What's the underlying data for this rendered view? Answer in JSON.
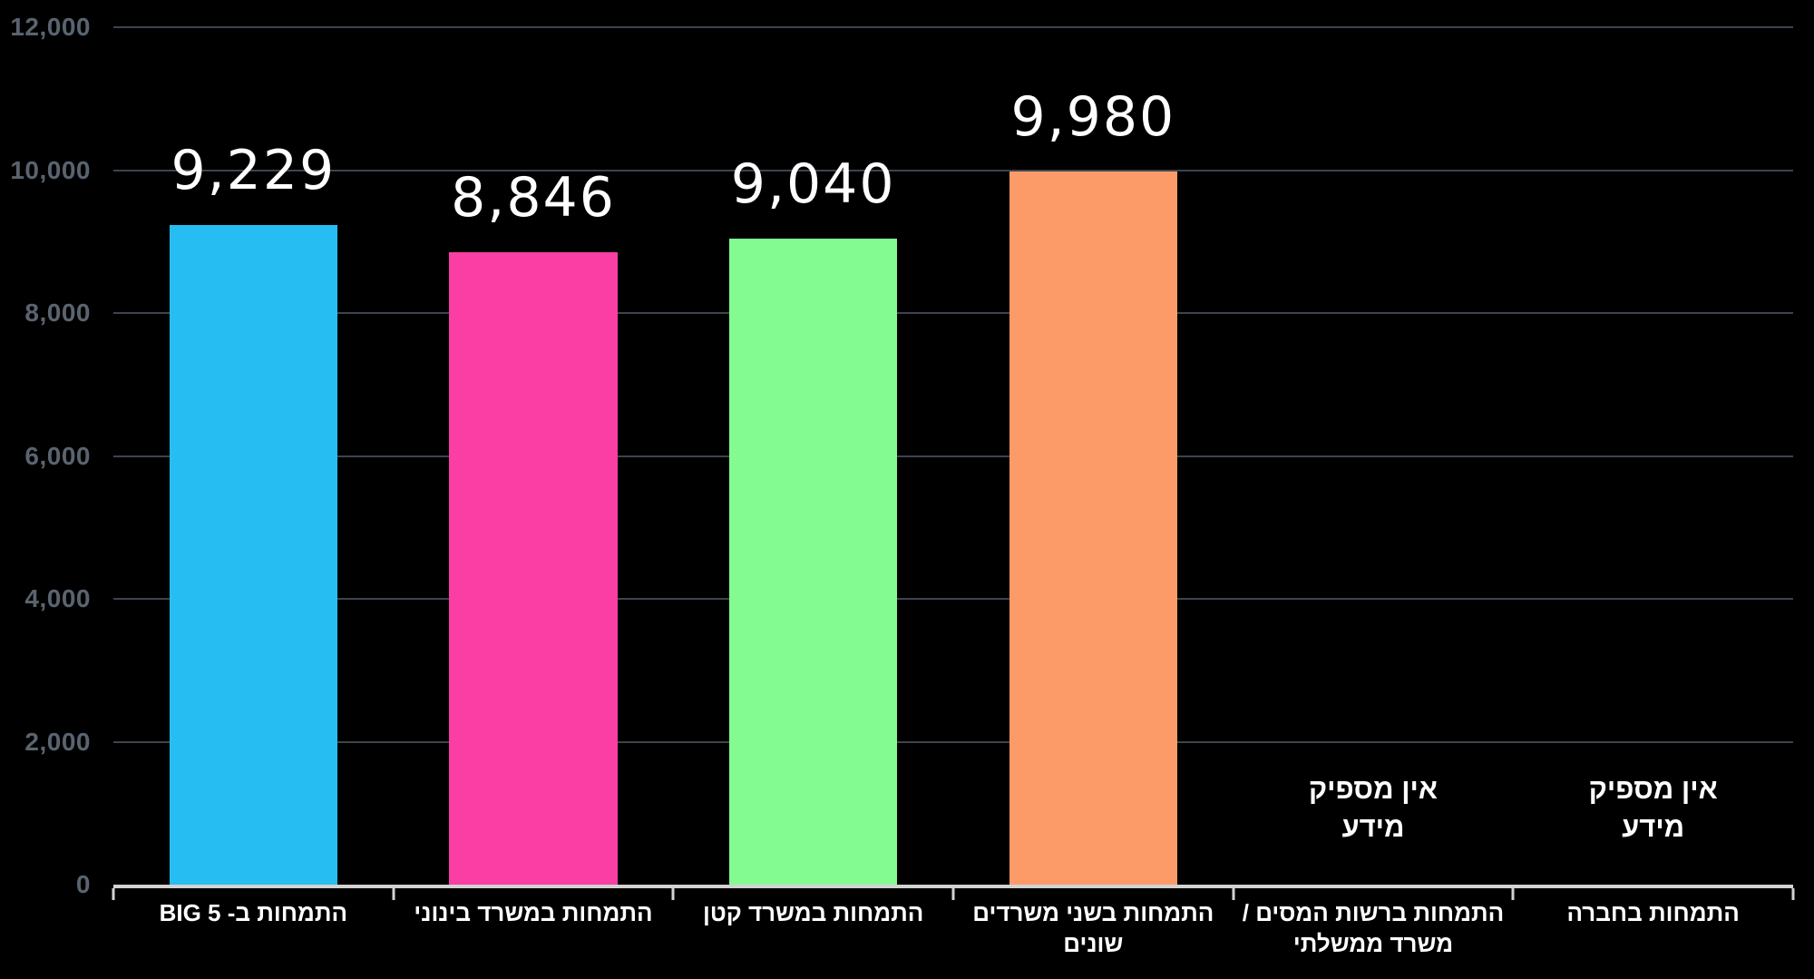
{
  "colors": {
    "background": "#000000",
    "grid": "#3D4450",
    "axis": "#D2D2D2",
    "y_tick_label": "#5A6470",
    "value_label": "#FFFFFF",
    "category_label": "#FFFFFF"
  },
  "chart_data": {
    "type": "bar",
    "direction": "rtl",
    "grid": true,
    "legend": false,
    "ylim": [
      0,
      12000
    ],
    "ytick_values": [
      0,
      2000,
      4000,
      6000,
      8000,
      10000,
      12000
    ],
    "ytick_labels": [
      "0",
      "2,000",
      "4,000",
      "6,000",
      "8,000",
      "10,000",
      "12,000"
    ],
    "categories": [
      "התמחות ב- BIG 5",
      "התמחות במשרד בינוני",
      "התמחות במשרד קטן",
      "התמחות בשני משרדים שונים",
      "התמחות ברשות המסים / משרד ממשלתי",
      "התמחות בחברה"
    ],
    "category_display": [
      "התמחות ב- BIG 5",
      "התמחות במשרד בינוני",
      "התמחות במשרד קטן",
      "התמחות בשני משרדים\nשונים",
      "התמחות ברשות המסים /\nמשרד ממשלתי",
      "התמחות בחברה"
    ],
    "values": [
      9229,
      8846,
      9040,
      9980,
      null,
      null
    ],
    "value_labels": [
      "9,229",
      "8,846",
      "9,040",
      "9,980",
      null,
      null
    ],
    "bar_colors": [
      "#26BDF3",
      "#FB3EA4",
      "#83FB90",
      "#FC9B68",
      null,
      null
    ],
    "no_data_text": "אין מספיק\nמידע"
  }
}
